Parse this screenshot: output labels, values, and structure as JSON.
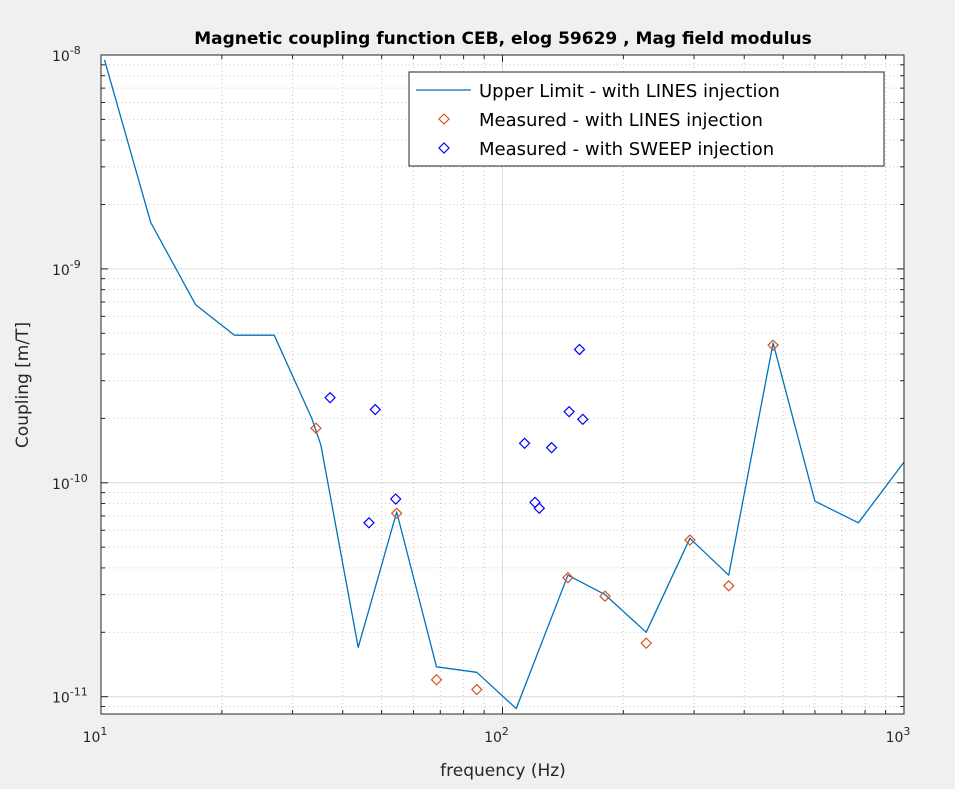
{
  "chart_data": {
    "type": "line",
    "title": "Magnetic coupling function CEB, elog 59629 , Mag field modulus",
    "xlabel": "frequency (Hz)",
    "ylabel": "Coupling [m/T]",
    "x_scale": "log",
    "y_scale": "log",
    "xlim": [
      10,
      1000
    ],
    "ylim": [
      8.3e-12,
      1e-08
    ],
    "grid": true,
    "minor_grid": true,
    "legend_position": "top-right",
    "x_ticks": [
      {
        "base": "10",
        "exp": "1"
      },
      {
        "base": "10",
        "exp": "2"
      },
      {
        "base": "10",
        "exp": "3"
      }
    ],
    "y_ticks": [
      {
        "base": "10",
        "exp": "-11"
      },
      {
        "base": "10",
        "exp": "-10"
      },
      {
        "base": "10",
        "exp": "-9"
      },
      {
        "base": "10",
        "exp": "-8"
      }
    ],
    "series": [
      {
        "name": "Upper Limit - with LINES injection",
        "style": "line",
        "color": "#0072BD",
        "x": [
          10.2,
          13.3,
          17.2,
          21.5,
          27,
          33.5,
          35.3,
          43.7,
          54.5,
          68.5,
          86.3,
          108.2,
          145.5,
          180,
          228,
          293,
          366,
          472,
          600,
          770,
          1000
        ],
        "y": [
          9.5e-09,
          1.65e-09,
          6.8e-10,
          4.9e-10,
          4.9e-10,
          2e-10,
          1.5e-10,
          1.7e-11,
          7.3e-11,
          1.38e-11,
          1.3e-11,
          8.8e-12,
          3.7e-11,
          3e-11,
          2e-11,
          5.5e-11,
          3.7e-11,
          4.5e-10,
          8.2e-11,
          6.5e-11,
          1.25e-10
        ]
      },
      {
        "name": "Measured - with LINES injection",
        "style": "markers",
        "marker": "diamond",
        "color": "#D95319",
        "x": [
          34.3,
          54.5,
          68.5,
          86.3,
          145.5,
          180,
          228,
          293,
          366,
          472
        ],
        "y": [
          1.8e-10,
          7.2e-11,
          1.2e-11,
          1.08e-11,
          3.6e-11,
          2.95e-11,
          1.78e-11,
          5.4e-11,
          3.3e-11,
          4.4e-10
        ]
      },
      {
        "name": "Measured - with SWEEP injection",
        "style": "markers",
        "marker": "diamond",
        "color": "#0000FF",
        "x": [
          37.2,
          46.5,
          48.2,
          54.2,
          113.5,
          120.5,
          123.5,
          132.5,
          146.5,
          155.5,
          158.5
        ],
        "y": [
          2.5e-10,
          6.5e-11,
          2.2e-10,
          8.4e-11,
          1.53e-10,
          8.1e-11,
          7.6e-11,
          1.46e-10,
          2.15e-10,
          4.2e-10,
          1.98e-10
        ]
      }
    ]
  }
}
